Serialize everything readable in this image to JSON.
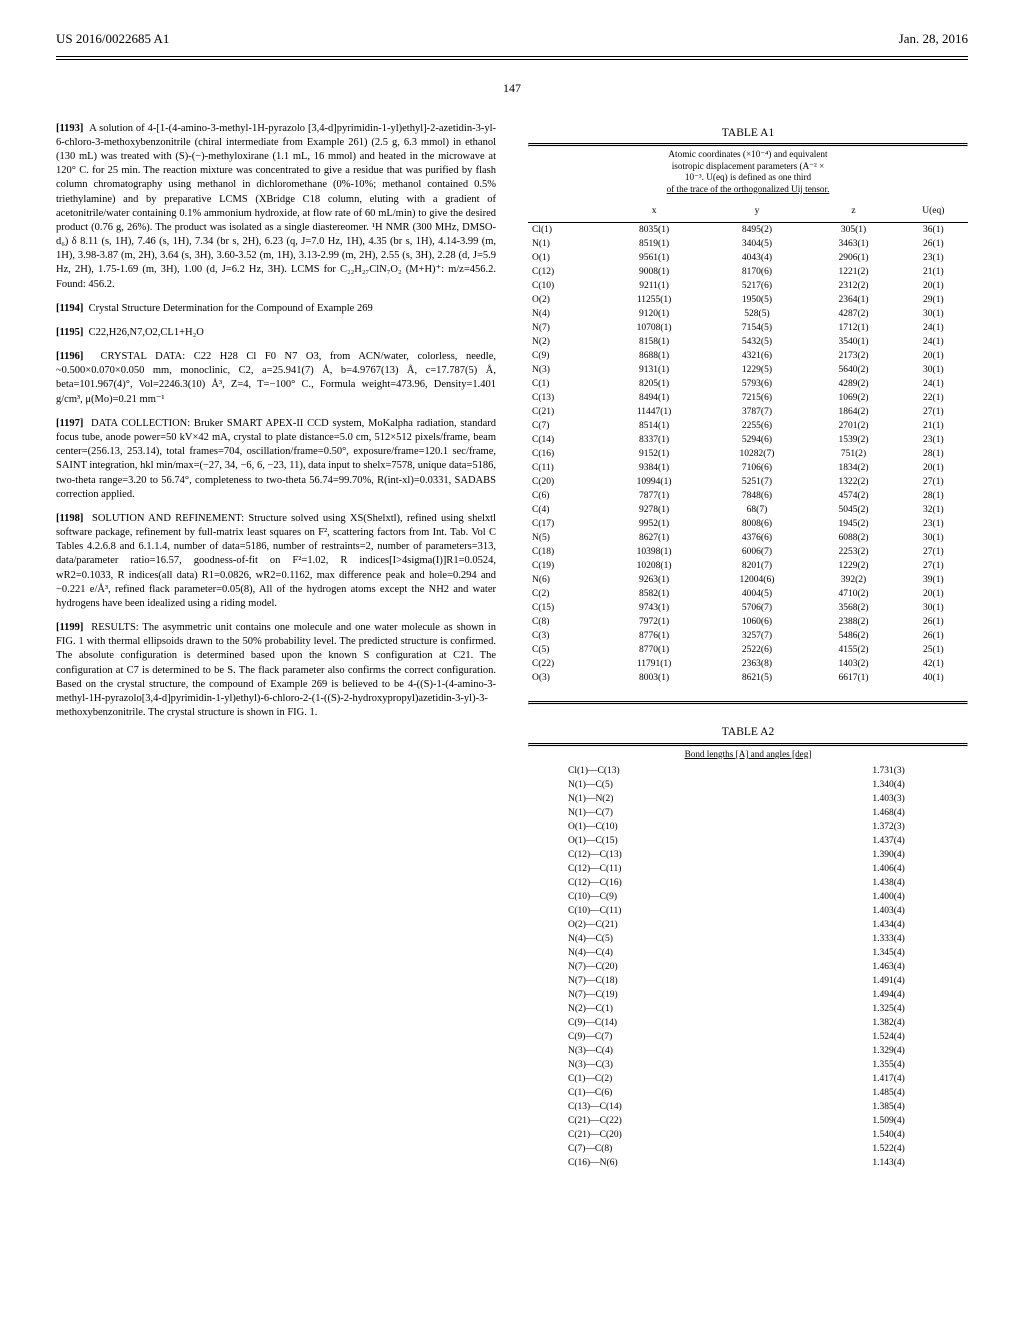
{
  "header": {
    "left": "US 2016/0022685 A1",
    "right": "Jan. 28, 2016"
  },
  "page_number": "147",
  "left_col": [
    {
      "ref": "[1193]",
      "body": "A solution of 4-[1-(4-amino-3-methyl-1H-pyrazolo [3,4-d]pyrimidin-1-yl)ethyl]-2-azetidin-3-yl-6-chloro-3-methoxybenzonitrile (chiral intermediate from Example 261) (2.5 g, 6.3 mmol) in ethanol (130 mL) was treated with (S)-(−)-methyloxirane (1.1 mL, 16 mmol) and heated in the microwave at 120° C. for 25 min. The reaction mixture was concentrated to give a residue that was purified by flash column chromatography using methanol in dichloromethane (0%-10%; methanol contained 0.5% triethylamine) and by preparative LCMS (XBridge C18 column, eluting with a gradient of acetonitrile/water containing 0.1% ammonium hydroxide, at flow rate of 60 mL/min) to give the desired product (0.76 g, 26%). The product was isolated as a single diastereomer. ¹H NMR (300 MHz, DMSO-d₆) δ 8.11 (s, 1H), 7.46 (s, 1H), 7.34 (br s, 2H), 6.23 (q, J=7.0 Hz, 1H), 4.35 (br s, 1H), 4.14-3.99 (m, 1H), 3.98-3.87 (m, 2H), 3.64 (s, 3H), 3.60-3.52 (m, 1H), 3.13-2.99 (m, 2H), 2.55 (s, 3H), 2.28 (d, J=5.9 Hz, 2H), 1.75-1.69 (m, 3H), 1.00 (d, J=6.2 Hz, 3H). LCMS for C₂₂H₂₇ClN₇O₂ (M+H)⁺: m/z=456.2. Found: 456.2."
    },
    {
      "ref": "[1194]",
      "body": "Crystal Structure Determination for the Compound of Example 269"
    },
    {
      "ref": "[1195]",
      "body": "C22,H26,N7,O2,CL1+H₂O"
    },
    {
      "ref": "[1196]",
      "body": "CRYSTAL DATA: C22 H28 Cl F0 N7 O3, from ACN/water, colorless, needle, ~0.500×0.070×0.050 mm, monoclinic, C2, a=25.941(7) Å, b=4.9767(13) Å, c=17.787(5) Å, beta=101.967(4)°, Vol=2246.3(10) Å³, Z=4, T=−100° C., Formula weight=473.96, Density=1.401 g/cm³, μ(Mo)=0.21 mm⁻¹"
    },
    {
      "ref": "[1197]",
      "body": "DATA COLLECTION: Bruker SMART APEX-II CCD system, MoKalpha radiation, standard focus tube, anode power=50 kV×42 mA, crystal to plate distance=5.0 cm, 512×512 pixels/frame, beam center=(256.13, 253.14), total frames=704, oscillation/frame=0.50°, exposure/frame=120.1 sec/frame, SAINT integration, hkl min/max=(−27, 34, −6, 6, −23, 11), data input to shelx=7578, unique data=5186, two-theta range=3.20 to 56.74°, completeness to two-theta 56.74=99.70%, R(int-xl)=0.0331, SADABS correction applied."
    },
    {
      "ref": "[1198]",
      "body": "SOLUTION AND REFINEMENT: Structure solved using XS(Shelxtl), refined using shelxtl software package, refinement by full-matrix least squares on F², scattering factors from Int. Tab. Vol C Tables 4.2.6.8 and 6.1.1.4, number of data=5186, number of restraints=2, number of parameters=313, data/parameter ratio=16.57, goodness-of-fit on F²=1.02, R indices[I>4sigma(I)]R1=0.0524, wR2=0.1033, R indices(all data) R1=0.0826, wR2=0.1162, max difference peak and hole=0.294 and −0.221 e/Å³, refined flack parameter=0.05(8), All of the hydrogen atoms except the NH2 and water hydrogens have been idealized using a riding model."
    },
    {
      "ref": "[1199]",
      "body": "RESULTS: The asymmetric unit contains one molecule and one water molecule as shown in FIG. 1 with thermal ellipsoids drawn to the 50% probability level. The predicted structure is confirmed. The absolute configuration is determined based upon the known S configuration at C21. The configuration at C7 is determined to be S. The flack parameter also confirms the correct configuration. Based on the crystal structure, the compound of Example 269 is believed to be 4-((S)-1-(4-amino-3-methyl-1H-pyrazolo[3,4-d]pyrimidin-1-yl)ethyl)-6-chloro-2-(1-((S)-2-hydroxypropyl)azetidin-3-yl)-3-methoxybenzonitrile. The crystal structure is shown in FIG. 1."
    }
  ],
  "table_a1": {
    "title": "TABLE A1",
    "caption_lines": [
      "Atomic coordinates (×10⁻⁴) and equivalent",
      "isotropic displacement parameters (A⁻² ×",
      "10⁻³. U(eq) is defined as one third",
      "of the trace of the orthogonalized Uij tensor."
    ],
    "columns": [
      "",
      "x",
      "y",
      "z",
      "U(eq)"
    ],
    "rows": [
      [
        "Cl(1)",
        "8035(1)",
        "8495(2)",
        "305(1)",
        "36(1)"
      ],
      [
        "N(1)",
        "8519(1)",
        "3404(5)",
        "3463(1)",
        "26(1)"
      ],
      [
        "O(1)",
        "9561(1)",
        "4043(4)",
        "2906(1)",
        "23(1)"
      ],
      [
        "C(12)",
        "9008(1)",
        "8170(6)",
        "1221(2)",
        "21(1)"
      ],
      [
        "C(10)",
        "9211(1)",
        "5217(6)",
        "2312(2)",
        "20(1)"
      ],
      [
        "O(2)",
        "11255(1)",
        "1950(5)",
        "2364(1)",
        "29(1)"
      ],
      [
        "N(4)",
        "9120(1)",
        "528(5)",
        "4287(2)",
        "30(1)"
      ],
      [
        "N(7)",
        "10708(1)",
        "7154(5)",
        "1712(1)",
        "24(1)"
      ],
      [
        "N(2)",
        "8158(1)",
        "5432(5)",
        "3540(1)",
        "24(1)"
      ],
      [
        "C(9)",
        "8688(1)",
        "4321(6)",
        "2173(2)",
        "20(1)"
      ],
      [
        "N(3)",
        "9131(1)",
        "1229(5)",
        "5640(2)",
        "30(1)"
      ],
      [
        "C(1)",
        "8205(1)",
        "5793(6)",
        "4289(2)",
        "24(1)"
      ],
      [
        "C(13)",
        "8494(1)",
        "7215(6)",
        "1069(2)",
        "22(1)"
      ],
      [
        "C(21)",
        "11447(1)",
        "3787(7)",
        "1864(2)",
        "27(1)"
      ],
      [
        "C(7)",
        "8514(1)",
        "2255(6)",
        "2701(2)",
        "21(1)"
      ],
      [
        "C(14)",
        "8337(1)",
        "5294(6)",
        "1539(2)",
        "23(1)"
      ],
      [
        "C(16)",
        "9152(1)",
        "10282(7)",
        "751(2)",
        "28(1)"
      ],
      [
        "C(11)",
        "9384(1)",
        "7106(6)",
        "1834(2)",
        "20(1)"
      ],
      [
        "C(20)",
        "10994(1)",
        "5251(7)",
        "1322(2)",
        "27(1)"
      ],
      [
        "C(6)",
        "7877(1)",
        "7848(6)",
        "4574(2)",
        "28(1)"
      ],
      [
        "C(4)",
        "9278(1)",
        "68(7)",
        "5045(2)",
        "32(1)"
      ],
      [
        "C(17)",
        "9952(1)",
        "8008(6)",
        "1945(2)",
        "23(1)"
      ],
      [
        "N(5)",
        "8627(1)",
        "4376(6)",
        "6088(2)",
        "30(1)"
      ],
      [
        "C(18)",
        "10398(1)",
        "6006(7)",
        "2253(2)",
        "27(1)"
      ],
      [
        "C(19)",
        "10208(1)",
        "8201(7)",
        "1229(2)",
        "27(1)"
      ],
      [
        "N(6)",
        "9263(1)",
        "12004(6)",
        "392(2)",
        "39(1)"
      ],
      [
        "C(2)",
        "8582(1)",
        "4004(5)",
        "4710(2)",
        "20(1)"
      ],
      [
        "C(15)",
        "9743(1)",
        "5706(7)",
        "3568(2)",
        "30(1)"
      ],
      [
        "C(8)",
        "7972(1)",
        "1060(6)",
        "2388(2)",
        "26(1)"
      ],
      [
        "C(3)",
        "8776(1)",
        "3257(7)",
        "5486(2)",
        "26(1)"
      ],
      [
        "C(5)",
        "8770(1)",
        "2522(6)",
        "4155(2)",
        "25(1)"
      ],
      [
        "C(22)",
        "11791(1)",
        "2363(8)",
        "1403(2)",
        "42(1)"
      ],
      [
        "O(3)",
        "8003(1)",
        "8621(5)",
        "6617(1)",
        "40(1)"
      ]
    ]
  },
  "table_a2": {
    "title": "TABLE A2",
    "caption": "Bond lengths [A] and angles [deg]",
    "rows": [
      [
        "Cl(1)—C(13)",
        "1.731(3)"
      ],
      [
        "N(1)—C(5)",
        "1.340(4)"
      ],
      [
        "N(1)—N(2)",
        "1.403(3)"
      ],
      [
        "N(1)—C(7)",
        "1.468(4)"
      ],
      [
        "O(1)—C(10)",
        "1.372(3)"
      ],
      [
        "O(1)—C(15)",
        "1.437(4)"
      ],
      [
        "C(12)—C(13)",
        "1.390(4)"
      ],
      [
        "C(12)—C(11)",
        "1.406(4)"
      ],
      [
        "C(12)—C(16)",
        "1.438(4)"
      ],
      [
        "C(10)—C(9)",
        "1.400(4)"
      ],
      [
        "C(10)—C(11)",
        "1.403(4)"
      ],
      [
        "O(2)—C(21)",
        "1.434(4)"
      ],
      [
        "N(4)—C(5)",
        "1.333(4)"
      ],
      [
        "N(4)—C(4)",
        "1.345(4)"
      ],
      [
        "N(7)—C(20)",
        "1.463(4)"
      ],
      [
        "N(7)—C(18)",
        "1.491(4)"
      ],
      [
        "N(7)—C(19)",
        "1.494(4)"
      ],
      [
        "N(2)—C(1)",
        "1.325(4)"
      ],
      [
        "C(9)—C(14)",
        "1.382(4)"
      ],
      [
        "C(9)—C(7)",
        "1.524(4)"
      ],
      [
        "N(3)—C(4)",
        "1.329(4)"
      ],
      [
        "N(3)—C(3)",
        "1.355(4)"
      ],
      [
        "C(1)—C(2)",
        "1.417(4)"
      ],
      [
        "C(1)—C(6)",
        "1.485(4)"
      ],
      [
        "C(13)—C(14)",
        "1.385(4)"
      ],
      [
        "C(21)—C(22)",
        "1.509(4)"
      ],
      [
        "C(21)—C(20)",
        "1.540(4)"
      ],
      [
        "C(7)—C(8)",
        "1.522(4)"
      ],
      [
        "C(16)—N(6)",
        "1.143(4)"
      ]
    ]
  }
}
